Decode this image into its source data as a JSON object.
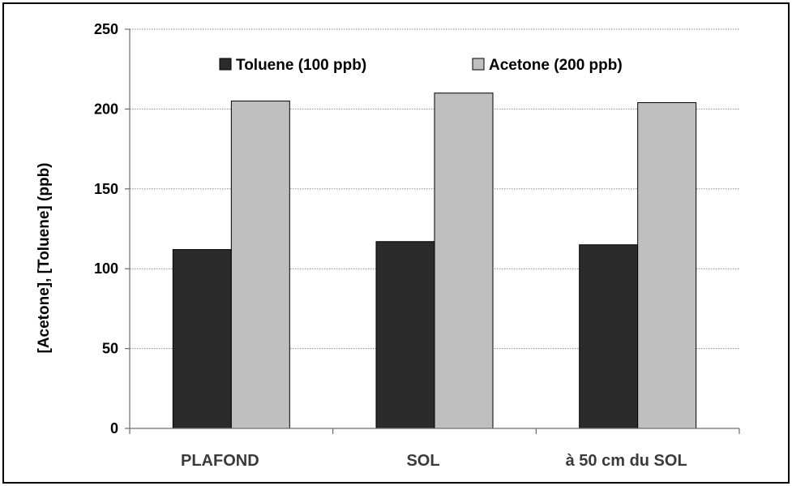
{
  "chart_data": {
    "type": "bar",
    "categories": [
      "PLAFOND",
      "SOL",
      "à 50 cm du SOL"
    ],
    "series": [
      {
        "name": "Toluene (100 ppb)",
        "values": [
          112,
          117,
          115
        ],
        "color": "#2b2b2b"
      },
      {
        "name": "Acetone (200 ppb)",
        "values": [
          205,
          210,
          204
        ],
        "color": "#bfbfbf"
      }
    ],
    "ylabel": "[Acetone], [Toluene] (ppb)",
    "xlabel": "",
    "ylim": [
      0,
      250
    ],
    "yticks": [
      0,
      50,
      100,
      150,
      200,
      250
    ],
    "grid": true,
    "legend": "top-center"
  }
}
